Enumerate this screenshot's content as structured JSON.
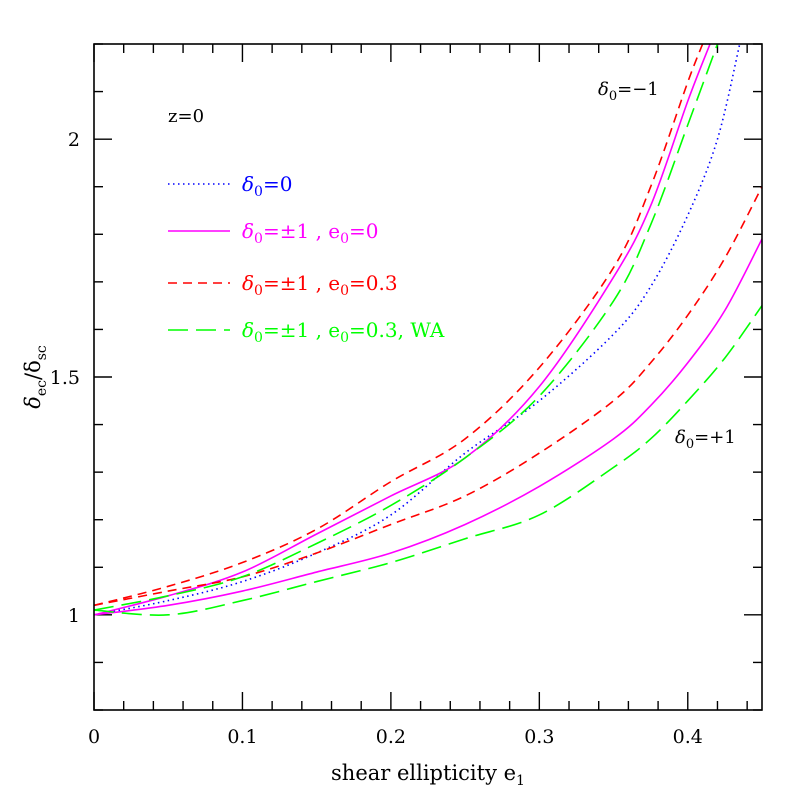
{
  "chart_data": {
    "type": "line",
    "xlabel_main": "shear ellipticity e",
    "xlabel_sub": "1",
    "ylabel_main": "δ",
    "ylabel_sub1": "ec",
    "ylabel_sep": "/δ",
    "ylabel_sub2": "sc",
    "xlim": [
      0,
      0.45
    ],
    "ylim": [
      0.8,
      2.2
    ],
    "xticks_major": [
      0,
      0.1,
      0.2,
      0.3,
      0.4
    ],
    "xtick_labels": [
      "0",
      "0.1",
      "0.2",
      "0.3",
      "0.4"
    ],
    "yticks_major": [
      1,
      1.5,
      2
    ],
    "ytick_labels": [
      "1",
      "1.5",
      "2"
    ],
    "annotations": {
      "redshift": "z=0",
      "upper_main": "δ",
      "upper_sub": "0",
      "upper_value": "=−1",
      "lower_main": "δ",
      "lower_sub": "0",
      "lower_value": "=+1"
    },
    "legend": [
      {
        "style": "dotted",
        "color": "#0000ff",
        "label_main": "δ",
        "label_sub": "0",
        "label_rest": "=0",
        "label_sub2": "",
        "label_rest2": ""
      },
      {
        "style": "solid",
        "color": "#ff00ff",
        "label_main": "δ",
        "label_sub": "0",
        "label_rest": "=±1 , e",
        "label_sub2": "0",
        "label_rest2": "=0"
      },
      {
        "style": "short-dash",
        "color": "#ff0000",
        "label_main": "δ",
        "label_sub": "0",
        "label_rest": "=±1 , e",
        "label_sub2": "0",
        "label_rest2": "=0.3"
      },
      {
        "style": "long-dash",
        "color": "#00ff00",
        "label_main": "δ",
        "label_sub": "0",
        "label_rest": "=±1 , e",
        "label_sub2": "0",
        "label_rest2": "=0.3, WA"
      }
    ],
    "series": [
      {
        "style": "dotted",
        "color": "#0000ff",
        "x": [
          0,
          0.05,
          0.1,
          0.15,
          0.2,
          0.25,
          0.3,
          0.35,
          0.375,
          0.4,
          0.42,
          0.435
        ],
        "y": [
          1.0,
          1.03,
          1.07,
          1.13,
          1.21,
          1.34,
          1.45,
          1.59,
          1.69,
          1.84,
          2.0,
          2.2
        ]
      },
      {
        "style": "solid",
        "color": "#ff00ff",
        "x": [
          0,
          0.05,
          0.1,
          0.15,
          0.2,
          0.25,
          0.3,
          0.35,
          0.375,
          0.4,
          0.415
        ],
        "y": [
          1.0,
          1.04,
          1.09,
          1.17,
          1.25,
          1.33,
          1.48,
          1.71,
          1.86,
          2.08,
          2.2
        ]
      },
      {
        "style": "solid",
        "color": "#ff00ff",
        "x": [
          0,
          0.05,
          0.1,
          0.15,
          0.2,
          0.25,
          0.3,
          0.35,
          0.375,
          0.4,
          0.425,
          0.45
        ],
        "y": [
          1.0,
          1.02,
          1.05,
          1.09,
          1.13,
          1.19,
          1.27,
          1.37,
          1.44,
          1.53,
          1.64,
          1.79
        ]
      },
      {
        "style": "short-dash",
        "color": "#ff0000",
        "x": [
          0,
          0.05,
          0.1,
          0.15,
          0.2,
          0.25,
          0.3,
          0.35,
          0.375,
          0.4,
          0.41
        ],
        "y": [
          1.02,
          1.06,
          1.11,
          1.18,
          1.28,
          1.37,
          1.52,
          1.73,
          1.9,
          2.12,
          2.2
        ]
      },
      {
        "style": "short-dash",
        "color": "#ff0000",
        "x": [
          0,
          0.05,
          0.1,
          0.15,
          0.2,
          0.25,
          0.3,
          0.35,
          0.375,
          0.4,
          0.425,
          0.45
        ],
        "y": [
          1.02,
          1.05,
          1.08,
          1.13,
          1.19,
          1.25,
          1.34,
          1.45,
          1.53,
          1.63,
          1.75,
          1.9
        ]
      },
      {
        "style": "long-dash",
        "color": "#00ff00",
        "x": [
          0,
          0.05,
          0.1,
          0.15,
          0.2,
          0.25,
          0.3,
          0.35,
          0.375,
          0.4,
          0.42
        ],
        "y": [
          1.01,
          1.04,
          1.08,
          1.15,
          1.23,
          1.33,
          1.46,
          1.66,
          1.82,
          2.03,
          2.2
        ]
      },
      {
        "style": "long-dash",
        "color": "#00ff00",
        "x": [
          0,
          0.05,
          0.1,
          0.15,
          0.2,
          0.25,
          0.3,
          0.35,
          0.375,
          0.4,
          0.425,
          0.45
        ],
        "y": [
          1.01,
          1.0,
          1.03,
          1.07,
          1.11,
          1.16,
          1.21,
          1.31,
          1.37,
          1.45,
          1.54,
          1.65
        ]
      }
    ]
  }
}
